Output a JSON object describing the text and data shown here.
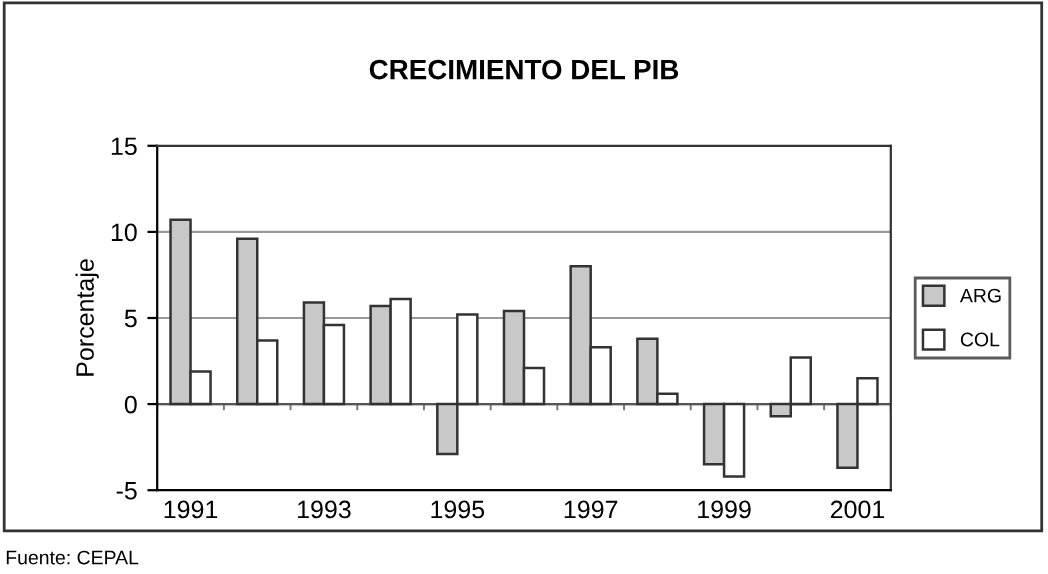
{
  "chart_data": {
    "type": "bar",
    "title": "CRECIMIENTO DEL PIB",
    "ylabel": "Porcentaje",
    "categories": [
      "1991",
      null,
      "1993",
      null,
      "1995",
      null,
      "1997",
      null,
      "1999",
      null,
      "2001"
    ],
    "series": [
      {
        "name": "ARG",
        "color": "#c8c8c8",
        "values": [
          10.7,
          9.6,
          5.9,
          5.7,
          -2.9,
          5.4,
          8.0,
          3.8,
          -3.5,
          -0.7,
          -3.7
        ]
      },
      {
        "name": "COL",
        "color": "#ffffff",
        "values": [
          1.9,
          3.7,
          4.6,
          6.1,
          5.2,
          2.1,
          3.3,
          0.6,
          -4.2,
          2.7,
          1.5
        ]
      }
    ],
    "ylim": [
      -5,
      15
    ],
    "yticks": [
      -5,
      0,
      5,
      10,
      15
    ],
    "grid": "y",
    "legend": "right",
    "annotations": [
      "Fuente: CEPAL"
    ]
  }
}
